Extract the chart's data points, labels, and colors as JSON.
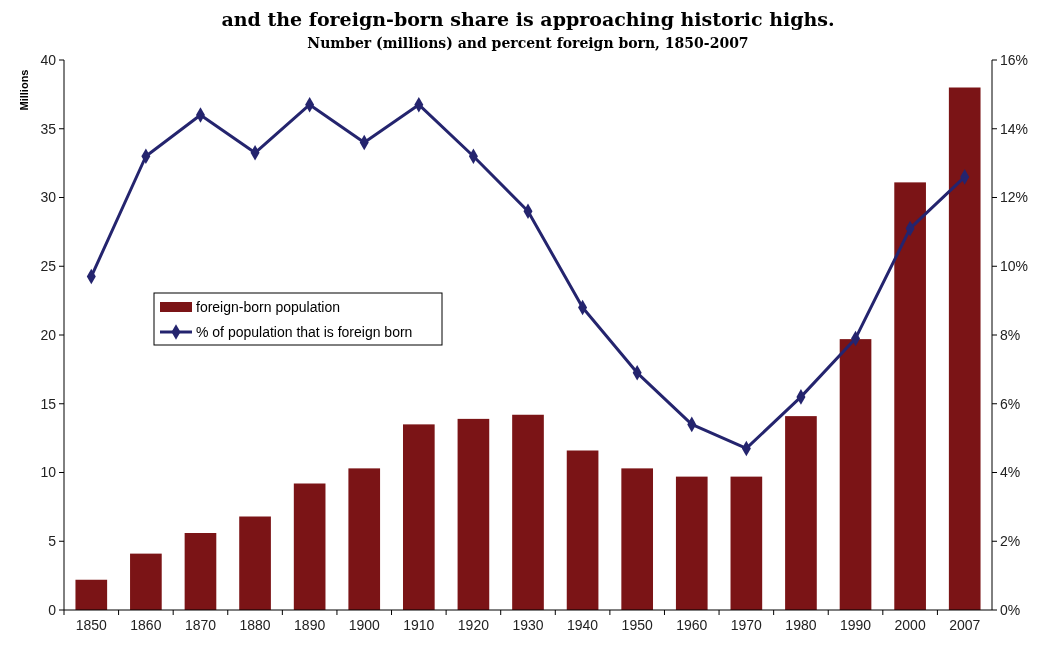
{
  "chart_data": {
    "type": "bar",
    "title": "and the foreign-born share is approaching historic highs.",
    "subtitle": "Number (millions) and percent foreign born, 1850-2007",
    "ylabel": "Millions",
    "categories": [
      "1850",
      "1860",
      "1870",
      "1880",
      "1890",
      "1900",
      "1910",
      "1920",
      "1930",
      "1940",
      "1950",
      "1960",
      "1970",
      "1980",
      "1990",
      "2000",
      "2007"
    ],
    "series": [
      {
        "name": "foreign-born population",
        "color": "#7b1416",
        "values": [
          2.2,
          4.1,
          5.6,
          6.8,
          9.2,
          10.3,
          13.5,
          13.9,
          14.2,
          11.6,
          10.3,
          9.7,
          9.7,
          14.1,
          19.7,
          31.1,
          38.0
        ]
      },
      {
        "name": "% of population that is foreign born",
        "type": "line",
        "axis": "y2",
        "color": "#24246e",
        "marker": "diamond",
        "values": [
          9.7,
          13.2,
          14.4,
          13.3,
          14.7,
          13.6,
          14.7,
          13.2,
          11.6,
          8.8,
          6.9,
          5.4,
          4.7,
          6.2,
          7.9,
          11.1,
          12.6
        ]
      }
    ],
    "ylim": [
      0,
      40
    ],
    "yticks": [
      0,
      5,
      10,
      15,
      20,
      25,
      30,
      35,
      40
    ],
    "y2lim": [
      0,
      16
    ],
    "y2ticks": [
      {
        "value": 0,
        "label": "0%"
      },
      {
        "value": 2,
        "label": "2%"
      },
      {
        "value": 4,
        "label": "4%"
      },
      {
        "value": 6,
        "label": "6%"
      },
      {
        "value": 8,
        "label": "8%"
      },
      {
        "value": 10,
        "label": "10%"
      },
      {
        "value": 12,
        "label": "12%"
      },
      {
        "value": 14,
        "label": "14%"
      },
      {
        "value": 16,
        "label": "16%"
      }
    ],
    "grid": false,
    "legend": "left"
  }
}
